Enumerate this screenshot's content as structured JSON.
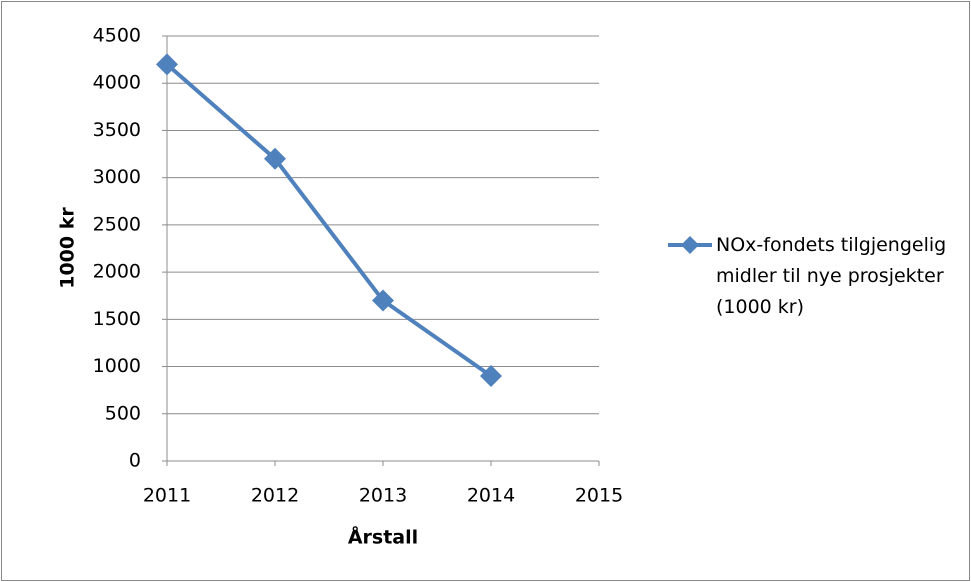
{
  "chart_data": {
    "type": "line",
    "x": [
      2011,
      2012,
      2013,
      2014
    ],
    "series": [
      {
        "name": "NOx-fondets tilgjengelig midler til nye prosjekter (1000 kr)",
        "color": "#4f81bd",
        "values": [
          4200,
          3200,
          1700,
          900
        ]
      }
    ],
    "xlim": [
      2011,
      2015
    ],
    "xticks": [
      2011,
      2012,
      2013,
      2014,
      2015
    ],
    "ylim": [
      0,
      4500
    ],
    "yticks": [
      0,
      500,
      1000,
      1500,
      2000,
      2500,
      3000,
      3500,
      4000,
      4500
    ],
    "xlabel": "Årstall",
    "ylabel": "1000 kr",
    "grid": true,
    "legend": "right"
  }
}
